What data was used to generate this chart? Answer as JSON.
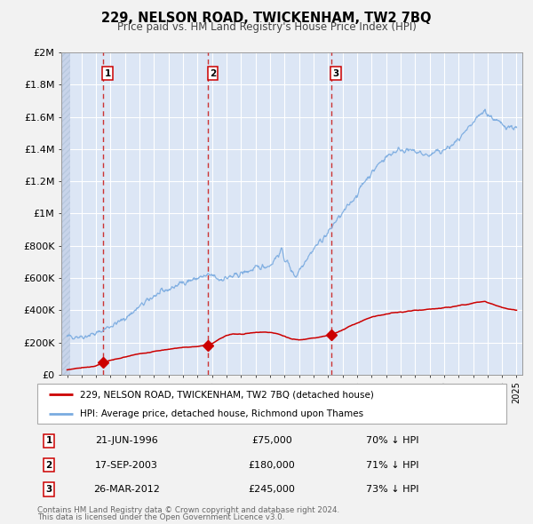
{
  "title": "229, NELSON ROAD, TWICKENHAM, TW2 7BQ",
  "subtitle": "Price paid vs. HM Land Registry's House Price Index (HPI)",
  "xlim": [
    1993.6,
    2025.4
  ],
  "ylim": [
    0,
    2000000
  ],
  "yticks": [
    0,
    200000,
    400000,
    600000,
    800000,
    1000000,
    1200000,
    1400000,
    1600000,
    1800000,
    2000000
  ],
  "ytick_labels": [
    "£0",
    "£200K",
    "£400K",
    "£600K",
    "£800K",
    "£1M",
    "£1.2M",
    "£1.4M",
    "£1.6M",
    "£1.8M",
    "£2M"
  ],
  "fig_bg_color": "#f2f2f2",
  "plot_bg_color": "#dce6f5",
  "grid_color": "#ffffff",
  "red_line_color": "#cc0000",
  "blue_line_color": "#7aabe0",
  "dashed_line_color": "#cc3333",
  "box_edge_color": "#cc0000",
  "transactions": [
    {
      "num": 1,
      "year": 1996.47,
      "price": 75000,
      "date_label": "21-JUN-1996",
      "price_label": "£75,000",
      "pct_label": "70% ↓ HPI"
    },
    {
      "num": 2,
      "year": 2003.72,
      "price": 180000,
      "date_label": "17-SEP-2003",
      "price_label": "£180,000",
      "pct_label": "71% ↓ HPI"
    },
    {
      "num": 3,
      "year": 2012.23,
      "price": 245000,
      "date_label": "26-MAR-2012",
      "price_label": "£245,000",
      "pct_label": "73% ↓ HPI"
    }
  ],
  "legend_red_label": "229, NELSON ROAD, TWICKENHAM, TW2 7BQ (detached house)",
  "legend_blue_label": "HPI: Average price, detached house, Richmond upon Thames",
  "footnote1": "Contains HM Land Registry data © Crown copyright and database right 2024.",
  "footnote2": "This data is licensed under the Open Government Licence v3.0.",
  "hpi_base_points": [
    [
      1994.0,
      232000
    ],
    [
      1995.0,
      240000
    ],
    [
      1996.0,
      255000
    ],
    [
      1997.0,
      300000
    ],
    [
      1998.0,
      350000
    ],
    [
      1999.0,
      420000
    ],
    [
      2000.0,
      490000
    ],
    [
      2001.0,
      530000
    ],
    [
      2002.0,
      575000
    ],
    [
      2003.0,
      600000
    ],
    [
      2004.0,
      615000
    ],
    [
      2004.5,
      590000
    ],
    [
      2005.0,
      600000
    ],
    [
      2005.5,
      610000
    ],
    [
      2006.0,
      625000
    ],
    [
      2006.5,
      640000
    ],
    [
      2007.0,
      660000
    ],
    [
      2007.5,
      670000
    ],
    [
      2008.0,
      680000
    ],
    [
      2008.5,
      740000
    ],
    [
      2008.8,
      770000
    ],
    [
      2009.0,
      720000
    ],
    [
      2009.3,
      680000
    ],
    [
      2009.5,
      640000
    ],
    [
      2009.8,
      610000
    ],
    [
      2010.0,
      650000
    ],
    [
      2010.5,
      720000
    ],
    [
      2011.0,
      780000
    ],
    [
      2011.5,
      830000
    ],
    [
      2012.0,
      880000
    ],
    [
      2012.5,
      950000
    ],
    [
      2013.0,
      1000000
    ],
    [
      2013.5,
      1060000
    ],
    [
      2014.0,
      1120000
    ],
    [
      2014.5,
      1200000
    ],
    [
      2015.0,
      1250000
    ],
    [
      2015.5,
      1310000
    ],
    [
      2016.0,
      1350000
    ],
    [
      2016.5,
      1380000
    ],
    [
      2017.0,
      1400000
    ],
    [
      2017.5,
      1390000
    ],
    [
      2018.0,
      1380000
    ],
    [
      2018.5,
      1370000
    ],
    [
      2019.0,
      1360000
    ],
    [
      2019.5,
      1380000
    ],
    [
      2020.0,
      1390000
    ],
    [
      2020.5,
      1420000
    ],
    [
      2021.0,
      1460000
    ],
    [
      2021.5,
      1500000
    ],
    [
      2022.0,
      1560000
    ],
    [
      2022.5,
      1610000
    ],
    [
      2022.8,
      1640000
    ],
    [
      2023.0,
      1620000
    ],
    [
      2023.5,
      1580000
    ],
    [
      2024.0,
      1555000
    ],
    [
      2024.5,
      1540000
    ],
    [
      2025.0,
      1530000
    ]
  ],
  "price_base_points": [
    [
      1994.0,
      30000
    ],
    [
      1995.0,
      42000
    ],
    [
      1996.0,
      58000
    ],
    [
      1996.47,
      75000
    ],
    [
      1997.0,
      90000
    ],
    [
      1998.0,
      108000
    ],
    [
      1999.0,
      128000
    ],
    [
      2000.0,
      148000
    ],
    [
      2001.0,
      160000
    ],
    [
      2002.0,
      170000
    ],
    [
      2003.0,
      178000
    ],
    [
      2003.72,
      180000
    ],
    [
      2004.0,
      190000
    ],
    [
      2004.5,
      220000
    ],
    [
      2005.0,
      240000
    ],
    [
      2005.5,
      248000
    ],
    [
      2006.0,
      252000
    ],
    [
      2006.5,
      258000
    ],
    [
      2007.0,
      262000
    ],
    [
      2007.5,
      265000
    ],
    [
      2008.0,
      262000
    ],
    [
      2008.5,
      255000
    ],
    [
      2009.0,
      240000
    ],
    [
      2009.5,
      220000
    ],
    [
      2010.0,
      215000
    ],
    [
      2010.5,
      220000
    ],
    [
      2011.0,
      228000
    ],
    [
      2011.5,
      235000
    ],
    [
      2012.0,
      242000
    ],
    [
      2012.23,
      245000
    ],
    [
      2012.5,
      258000
    ],
    [
      2013.0,
      278000
    ],
    [
      2013.5,
      300000
    ],
    [
      2014.0,
      320000
    ],
    [
      2014.5,
      340000
    ],
    [
      2015.0,
      355000
    ],
    [
      2015.5,
      365000
    ],
    [
      2016.0,
      375000
    ],
    [
      2016.5,
      382000
    ],
    [
      2017.0,
      388000
    ],
    [
      2017.5,
      393000
    ],
    [
      2018.0,
      398000
    ],
    [
      2018.5,
      400000
    ],
    [
      2019.0,
      405000
    ],
    [
      2019.5,
      410000
    ],
    [
      2020.0,
      415000
    ],
    [
      2020.5,
      420000
    ],
    [
      2021.0,
      428000
    ],
    [
      2021.5,
      435000
    ],
    [
      2022.0,
      445000
    ],
    [
      2022.5,
      452000
    ],
    [
      2022.8,
      455000
    ],
    [
      2023.0,
      448000
    ],
    [
      2023.5,
      432000
    ],
    [
      2024.0,
      418000
    ],
    [
      2024.5,
      408000
    ],
    [
      2025.0,
      400000
    ]
  ]
}
